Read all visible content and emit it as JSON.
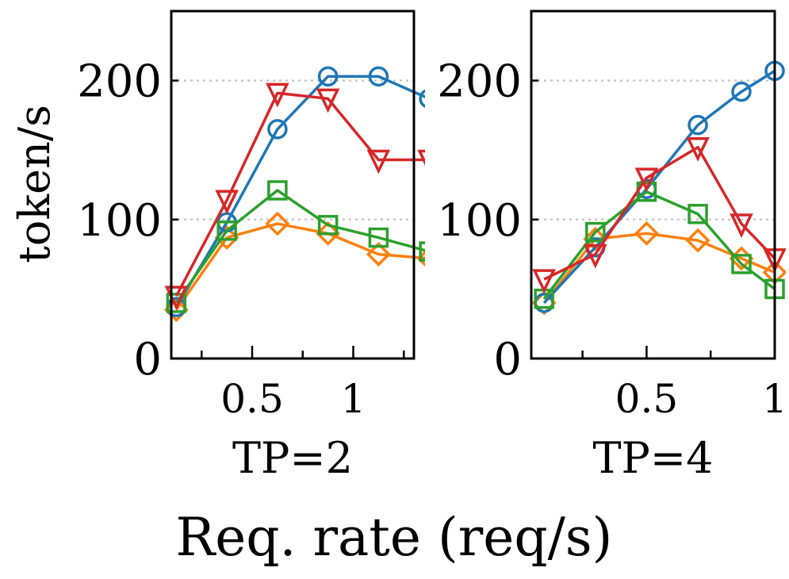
{
  "chart_data": [
    {
      "type": "line",
      "title": "TP=2",
      "ylabel": "token/s",
      "xlabel": "TP=2",
      "xlim": [
        0.1,
        1.3
      ],
      "ylim": [
        0,
        250
      ],
      "xticks_major": [
        0.5,
        1
      ],
      "xticks_major_labels": [
        "0.5",
        "1"
      ],
      "xticks_minor": [
        0.25,
        0.75,
        1.25
      ],
      "yticks": [
        0,
        100,
        200
      ],
      "ytick_labels": [
        "0",
        "100",
        "200"
      ],
      "grid": "horizontal dotted at 100 and 200",
      "x": [
        0.125,
        0.375,
        0.625,
        0.875,
        1.125,
        1.375
      ],
      "series": [
        {
          "name": "blue",
          "color": "#1f77b4",
          "marker": "circle",
          "values": [
            37,
            98,
            165,
            203,
            203,
            187
          ]
        },
        {
          "name": "orange",
          "color": "#ff7f0e",
          "marker": "diamond",
          "values": [
            35,
            87,
            97,
            90,
            75,
            72
          ]
        },
        {
          "name": "green",
          "color": "#2ca02c",
          "marker": "square",
          "values": [
            40,
            92,
            121,
            96,
            87,
            77
          ]
        },
        {
          "name": "red",
          "color": "#d62728",
          "marker": "triangle-down",
          "values": [
            45,
            114,
            191,
            187,
            143,
            143
          ]
        }
      ]
    },
    {
      "type": "line",
      "title": "TP=4",
      "xlabel": "TP=4",
      "xlim": [
        0.05,
        1.0
      ],
      "ylim": [
        0,
        250
      ],
      "xticks_major": [
        0.5,
        1
      ],
      "xticks_major_labels": [
        "0.5",
        "1"
      ],
      "xticks_minor": [
        0.25,
        0.75
      ],
      "yticks": [
        0,
        100,
        200
      ],
      "ytick_labels": [
        "0",
        "100",
        "200"
      ],
      "grid": "horizontal dotted at 100 and 200",
      "x": [
        0.1,
        0.3,
        0.5,
        0.7,
        0.87,
        1.0
      ],
      "series": [
        {
          "name": "blue",
          "color": "#1f77b4",
          "marker": "circle",
          "values": [
            40,
            80,
            122,
            168,
            192,
            207
          ]
        },
        {
          "name": "orange",
          "color": "#ff7f0e",
          "marker": "diamond",
          "values": [
            40,
            86,
            90,
            85,
            72,
            62
          ]
        },
        {
          "name": "green",
          "color": "#2ca02c",
          "marker": "square",
          "values": [
            43,
            91,
            120,
            104,
            68,
            50
          ]
        },
        {
          "name": "red",
          "color": "#d62728",
          "marker": "triangle-down",
          "values": [
            57,
            75,
            130,
            152,
            97,
            72
          ]
        }
      ]
    }
  ],
  "figure": {
    "ylabel": "token/s",
    "xlabel": "Req. rate (req/s)"
  }
}
